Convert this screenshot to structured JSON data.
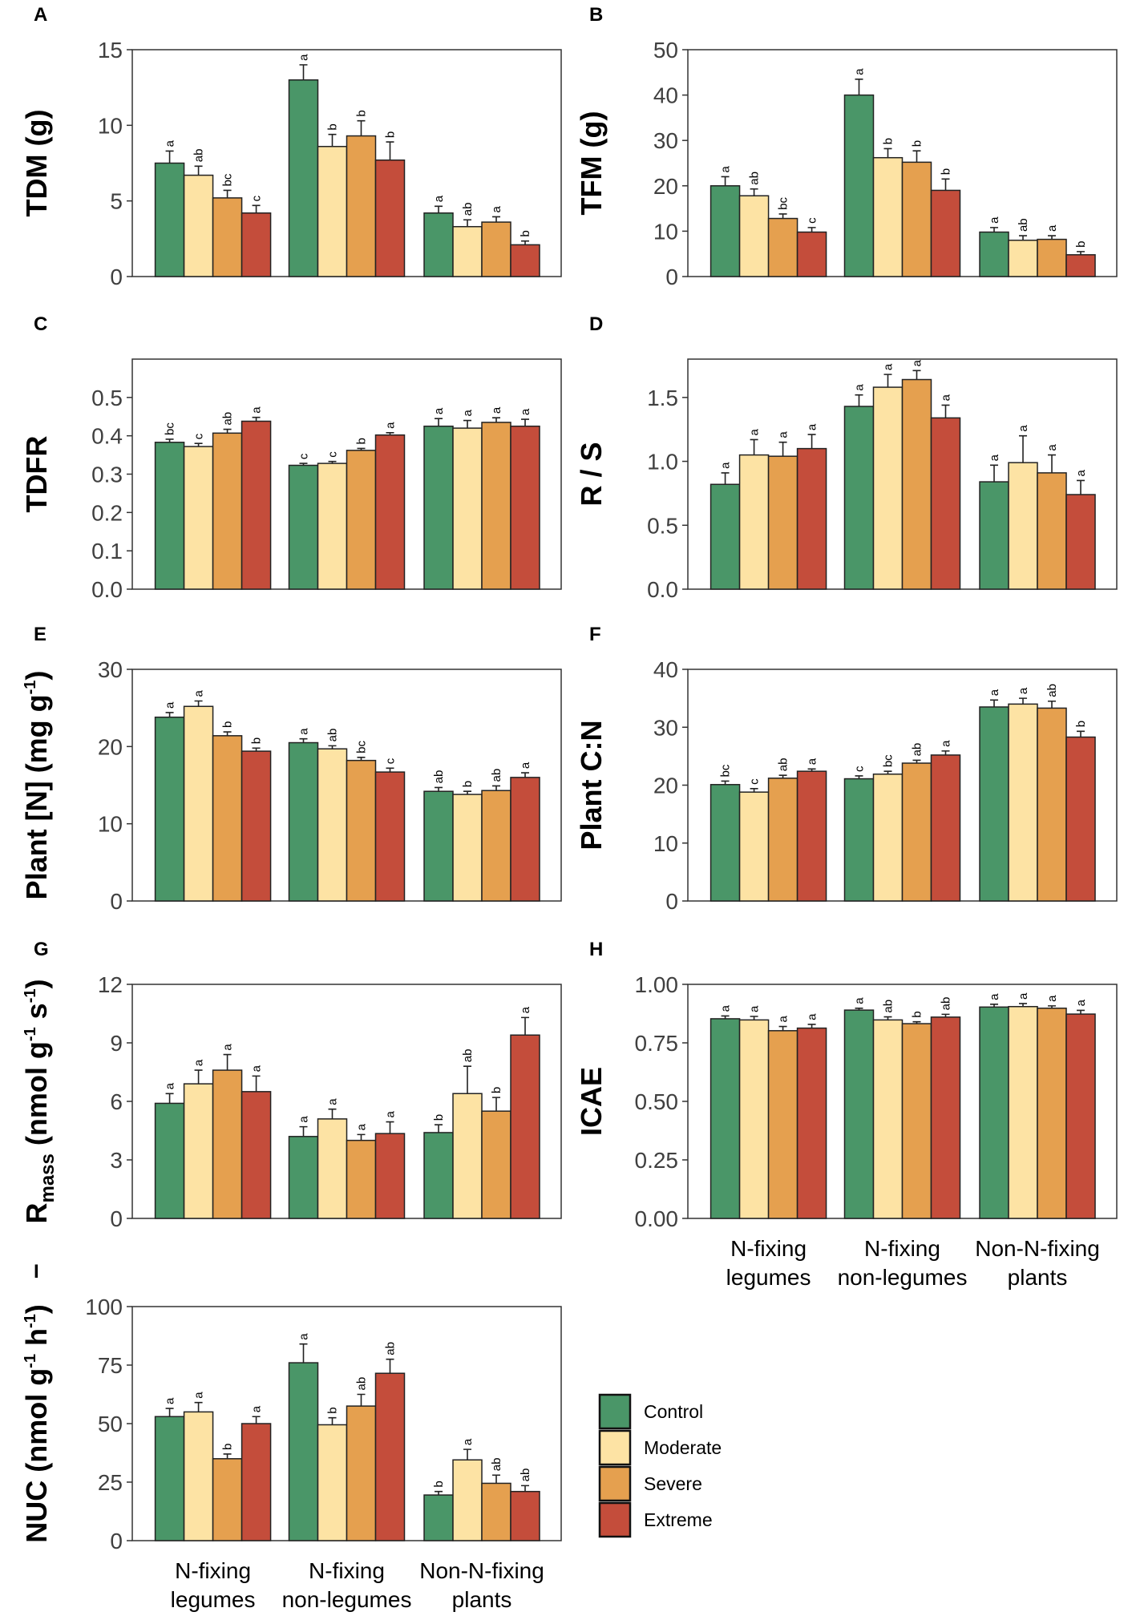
{
  "figure": {
    "categories": [
      "N-fixing legumes",
      "N-fixing non-legumes",
      "Non-N-fixing plants"
    ],
    "category_lines": [
      [
        "N-fixing",
        "legumes"
      ],
      [
        "N-fixing",
        "non-legumes"
      ],
      [
        "Non-N-fixing",
        "plants"
      ]
    ],
    "colors": {
      "Control": "#4a9668",
      "Moderate": "#fde3a4",
      "Severe": "#e5a04f",
      "Extreme": "#c44d3b"
    },
    "legend": [
      "Control",
      "Moderate",
      "Severe",
      "Extreme"
    ]
  },
  "chart_data": [
    {
      "panel": "A",
      "type": "bar",
      "ylabel": "TDM (g)",
      "ylim": [
        0,
        15
      ],
      "yticks": [
        "0",
        "5",
        "10",
        "15"
      ],
      "series": [
        {
          "name": "Control",
          "values": [
            7.5,
            13.0,
            4.2
          ],
          "errors": [
            0.8,
            1.0,
            0.45
          ],
          "letters": [
            "a",
            "a",
            "a"
          ]
        },
        {
          "name": "Moderate",
          "values": [
            6.7,
            8.6,
            3.3
          ],
          "errors": [
            0.6,
            0.8,
            0.45
          ],
          "letters": [
            "ab",
            "b",
            "ab"
          ]
        },
        {
          "name": "Severe",
          "values": [
            5.2,
            9.3,
            3.6
          ],
          "errors": [
            0.5,
            1.0,
            0.35
          ],
          "letters": [
            "bc",
            "b",
            "a"
          ]
        },
        {
          "name": "Extreme",
          "values": [
            4.2,
            7.7,
            2.1
          ],
          "errors": [
            0.5,
            1.2,
            0.25
          ],
          "letters": [
            "c",
            "b",
            "b"
          ]
        }
      ]
    },
    {
      "panel": "B",
      "type": "bar",
      "ylabel": "TFM (g)",
      "ylim": [
        0,
        50
      ],
      "yticks": [
        "0",
        "10",
        "20",
        "30",
        "40",
        "50"
      ],
      "series": [
        {
          "name": "Control",
          "values": [
            20.0,
            40.0,
            9.8
          ],
          "errors": [
            2.0,
            3.5,
            1.0
          ],
          "letters": [
            "a",
            "a",
            "a"
          ]
        },
        {
          "name": "Moderate",
          "values": [
            17.8,
            26.2,
            8.0
          ],
          "errors": [
            1.5,
            2.0,
            1.0
          ],
          "letters": [
            "ab",
            "b",
            "ab"
          ]
        },
        {
          "name": "Severe",
          "values": [
            12.8,
            25.2,
            8.2
          ],
          "errors": [
            1.0,
            2.5,
            0.8
          ],
          "letters": [
            "bc",
            "b",
            "a"
          ]
        },
        {
          "name": "Extreme",
          "values": [
            9.8,
            19.0,
            4.8
          ],
          "errors": [
            1.0,
            2.5,
            0.7
          ],
          "letters": [
            "c",
            "b",
            "b"
          ]
        }
      ]
    },
    {
      "panel": "C",
      "type": "bar",
      "ylabel": "TDFR",
      "ylim": [
        0,
        0.6
      ],
      "yticks": [
        "0.0",
        "0.1",
        "0.2",
        "0.3",
        "0.4",
        "0.5"
      ],
      "series": [
        {
          "name": "Control",
          "values": [
            0.383,
            0.323,
            0.425
          ],
          "errors": [
            0.008,
            0.005,
            0.02
          ],
          "letters": [
            "bc",
            "c",
            "a"
          ]
        },
        {
          "name": "Moderate",
          "values": [
            0.372,
            0.328,
            0.42
          ],
          "errors": [
            0.008,
            0.005,
            0.02
          ],
          "letters": [
            "c",
            "c",
            "a"
          ]
        },
        {
          "name": "Severe",
          "values": [
            0.407,
            0.362,
            0.435
          ],
          "errors": [
            0.01,
            0.005,
            0.012
          ],
          "letters": [
            "ab",
            "b",
            "a"
          ]
        },
        {
          "name": "Extreme",
          "values": [
            0.438,
            0.402,
            0.425
          ],
          "errors": [
            0.01,
            0.006,
            0.018
          ],
          "letters": [
            "a",
            "a",
            "a"
          ]
        }
      ]
    },
    {
      "panel": "D",
      "type": "bar",
      "ylabel": "R / S",
      "ylim": [
        0,
        1.8
      ],
      "yticks": [
        "0.0",
        "0.5",
        "1.0",
        "1.5"
      ],
      "series": [
        {
          "name": "Control",
          "values": [
            0.82,
            1.43,
            0.84
          ],
          "errors": [
            0.09,
            0.09,
            0.13
          ],
          "letters": [
            "a",
            "a",
            "a"
          ]
        },
        {
          "name": "Moderate",
          "values": [
            1.05,
            1.58,
            0.99
          ],
          "errors": [
            0.12,
            0.1,
            0.21
          ],
          "letters": [
            "a",
            "a",
            "a"
          ]
        },
        {
          "name": "Severe",
          "values": [
            1.04,
            1.64,
            0.91
          ],
          "errors": [
            0.11,
            0.07,
            0.14
          ],
          "letters": [
            "a",
            "a",
            "a"
          ]
        },
        {
          "name": "Extreme",
          "values": [
            1.1,
            1.34,
            0.74
          ],
          "errors": [
            0.11,
            0.1,
            0.11
          ],
          "letters": [
            "a",
            "a",
            "a"
          ]
        }
      ]
    },
    {
      "panel": "E",
      "type": "bar",
      "ylabel": "Plant [N] (mg g-1)",
      "ylim": [
        0,
        30
      ],
      "yticks": [
        "0",
        "10",
        "20",
        "30"
      ],
      "series": [
        {
          "name": "Control",
          "values": [
            23.8,
            20.5,
            14.2
          ],
          "errors": [
            0.6,
            0.5,
            0.5
          ],
          "letters": [
            "a",
            "a",
            "ab"
          ]
        },
        {
          "name": "Moderate",
          "values": [
            25.2,
            19.7,
            13.8
          ],
          "errors": [
            0.7,
            0.4,
            0.4
          ],
          "letters": [
            "a",
            "ab",
            "b"
          ]
        },
        {
          "name": "Severe",
          "values": [
            21.4,
            18.2,
            14.3
          ],
          "errors": [
            0.5,
            0.4,
            0.6
          ],
          "letters": [
            "b",
            "bc",
            "ab"
          ]
        },
        {
          "name": "Extreme",
          "values": [
            19.4,
            16.7,
            16.0
          ],
          "errors": [
            0.4,
            0.5,
            0.6
          ],
          "letters": [
            "b",
            "c",
            "a"
          ]
        }
      ]
    },
    {
      "panel": "F",
      "type": "bar",
      "ylabel": "Plant C:N",
      "ylim": [
        0,
        40
      ],
      "yticks": [
        "0",
        "10",
        "20",
        "30",
        "40"
      ],
      "series": [
        {
          "name": "Control",
          "values": [
            20.1,
            21.1,
            33.5
          ],
          "errors": [
            0.6,
            0.5,
            1.2
          ],
          "letters": [
            "bc",
            "c",
            "a"
          ]
        },
        {
          "name": "Moderate",
          "values": [
            18.8,
            21.9,
            34.0
          ],
          "errors": [
            0.6,
            0.5,
            1.0
          ],
          "letters": [
            "c",
            "bc",
            "a"
          ]
        },
        {
          "name": "Severe",
          "values": [
            21.2,
            23.8,
            33.3
          ],
          "errors": [
            0.5,
            0.5,
            1.2
          ],
          "letters": [
            "ab",
            "ab",
            "ab"
          ]
        },
        {
          "name": "Extreme",
          "values": [
            22.4,
            25.2,
            28.3
          ],
          "errors": [
            0.4,
            0.7,
            1.0
          ],
          "letters": [
            "a",
            "a",
            "b"
          ]
        }
      ]
    },
    {
      "panel": "G",
      "type": "bar",
      "ylabel": "Rmass (nmol g-1 s-1)",
      "ylim": [
        0,
        12
      ],
      "yticks": [
        "0",
        "3",
        "6",
        "9",
        "12"
      ],
      "series": [
        {
          "name": "Control",
          "values": [
            5.9,
            4.2,
            4.4
          ],
          "errors": [
            0.5,
            0.5,
            0.4
          ],
          "letters": [
            "a",
            "a",
            "b"
          ]
        },
        {
          "name": "Moderate",
          "values": [
            6.9,
            5.1,
            6.4
          ],
          "errors": [
            0.7,
            0.5,
            1.4
          ],
          "letters": [
            "a",
            "a",
            "ab"
          ]
        },
        {
          "name": "Severe",
          "values": [
            7.6,
            4.0,
            5.5
          ],
          "errors": [
            0.8,
            0.3,
            0.7
          ],
          "letters": [
            "a",
            "a",
            "b"
          ]
        },
        {
          "name": "Extreme",
          "values": [
            6.5,
            4.35,
            9.4
          ],
          "errors": [
            0.8,
            0.6,
            0.9
          ],
          "letters": [
            "a",
            "a",
            "a"
          ]
        }
      ]
    },
    {
      "panel": "H",
      "type": "bar",
      "ylabel": "ICAE",
      "ylim": [
        0,
        1.0
      ],
      "yticks": [
        "0.00",
        "0.25",
        "0.50",
        "0.75",
        "1.00"
      ],
      "series": [
        {
          "name": "Control",
          "values": [
            0.853,
            0.89,
            0.903
          ],
          "errors": [
            0.012,
            0.008,
            0.012
          ],
          "letters": [
            "a",
            "a",
            "a"
          ]
        },
        {
          "name": "Moderate",
          "values": [
            0.848,
            0.848,
            0.905
          ],
          "errors": [
            0.015,
            0.013,
            0.013
          ],
          "letters": [
            "a",
            "ab",
            "a"
          ]
        },
        {
          "name": "Severe",
          "values": [
            0.802,
            0.832,
            0.898
          ],
          "errors": [
            0.018,
            0.008,
            0.01
          ],
          "letters": [
            "a",
            "b",
            "a"
          ]
        },
        {
          "name": "Extreme",
          "values": [
            0.813,
            0.86,
            0.873
          ],
          "errors": [
            0.016,
            0.012,
            0.016
          ],
          "letters": [
            "a",
            "ab",
            "a"
          ]
        }
      ]
    },
    {
      "panel": "I",
      "type": "bar",
      "ylabel": "NUC (nmol g-1 h-1)",
      "ylim": [
        0,
        100
      ],
      "yticks": [
        "0",
        "25",
        "50",
        "75",
        "100"
      ],
      "series": [
        {
          "name": "Control",
          "values": [
            53.0,
            76.0,
            19.5
          ],
          "errors": [
            3.5,
            8.0,
            1.5
          ],
          "letters": [
            "a",
            "a",
            "b"
          ]
        },
        {
          "name": "Moderate",
          "values": [
            55.0,
            49.5,
            34.5
          ],
          "errors": [
            4.0,
            3.0,
            4.5
          ],
          "letters": [
            "a",
            "b",
            "a"
          ]
        },
        {
          "name": "Severe",
          "values": [
            35.0,
            57.5,
            24.5
          ],
          "errors": [
            2.0,
            5.0,
            3.5
          ],
          "letters": [
            "b",
            "ab",
            "ab"
          ]
        },
        {
          "name": "Extreme",
          "values": [
            50.0,
            71.5,
            21.0
          ],
          "errors": [
            3.0,
            6.0,
            2.5
          ],
          "letters": [
            "a",
            "ab",
            "ab"
          ]
        }
      ]
    }
  ]
}
